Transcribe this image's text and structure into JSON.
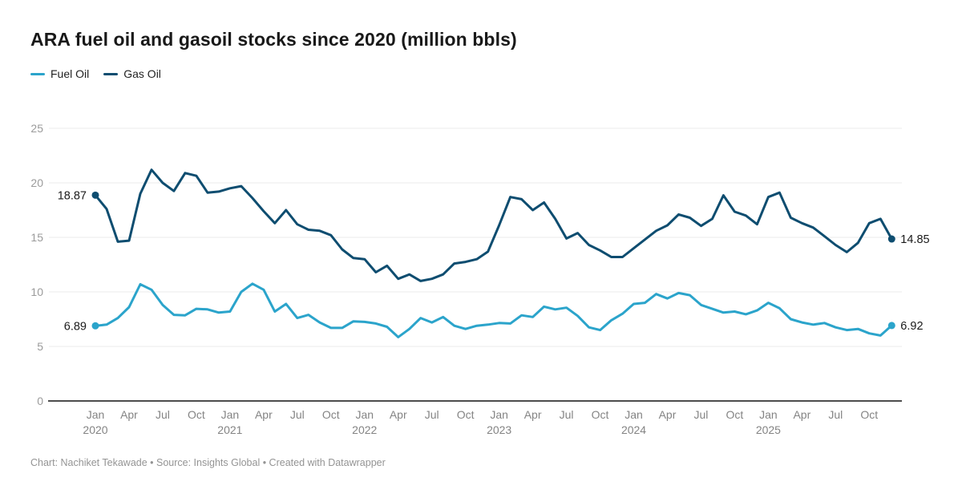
{
  "header": {
    "title": "ARA fuel oil and gasoil stocks since 2020 (million bbls)"
  },
  "legend": [
    {
      "label": "Fuel Oil",
      "color": "#2BA4CB"
    },
    {
      "label": "Gas Oil",
      "color": "#0E4D70"
    }
  ],
  "footer": {
    "text": "Chart: Nachiket Tekawade • Source: Insights Global • Created with Datawrapper"
  },
  "chart_data": {
    "type": "line",
    "title": "ARA fuel oil and gasoil stocks since 2020 (million bbls)",
    "frequency": "monthly",
    "x_start": "Jan 2020",
    "x_end": "Dec 2025",
    "ylim": [
      0,
      25
    ],
    "yticks": [
      0,
      5,
      10,
      15,
      20,
      25
    ],
    "grid": true,
    "legend_position": "top-left",
    "categories": [
      "Jan 2020",
      "Feb 2020",
      "Mar 2020",
      "Apr 2020",
      "May 2020",
      "Jun 2020",
      "Jul 2020",
      "Aug 2020",
      "Sep 2020",
      "Oct 2020",
      "Nov 2020",
      "Dec 2020",
      "Jan 2021",
      "Feb 2021",
      "Mar 2021",
      "Apr 2021",
      "May 2021",
      "Jun 2021",
      "Jul 2021",
      "Aug 2021",
      "Sep 2021",
      "Oct 2021",
      "Nov 2021",
      "Dec 2021",
      "Jan 2022",
      "Feb 2022",
      "Mar 2022",
      "Apr 2022",
      "May 2022",
      "Jun 2022",
      "Jul 2022",
      "Aug 2022",
      "Sep 2022",
      "Oct 2022",
      "Nov 2022",
      "Dec 2022",
      "Jan 2023",
      "Feb 2023",
      "Mar 2023",
      "Apr 2023",
      "May 2023",
      "Jun 2023",
      "Jul 2023",
      "Aug 2023",
      "Sep 2023",
      "Oct 2023",
      "Nov 2023",
      "Dec 2023",
      "Jan 2024",
      "Feb 2024",
      "Mar 2024",
      "Apr 2024",
      "May 2024",
      "Jun 2024",
      "Jul 2024",
      "Aug 2024",
      "Sep 2024",
      "Oct 2024",
      "Nov 2024",
      "Dec 2024",
      "Jan 2025",
      "Feb 2025",
      "Mar 2025",
      "Apr 2025",
      "May 2025",
      "Jun 2025",
      "Jul 2025",
      "Aug 2025",
      "Sep 2025",
      "Oct 2025",
      "Nov 2025",
      "Dec 2025"
    ],
    "xticks": [
      {
        "index": 0,
        "label": "Jan",
        "year": "2020"
      },
      {
        "index": 3,
        "label": "Apr"
      },
      {
        "index": 6,
        "label": "Jul"
      },
      {
        "index": 9,
        "label": "Oct"
      },
      {
        "index": 12,
        "label": "Jan",
        "year": "2021"
      },
      {
        "index": 15,
        "label": "Apr"
      },
      {
        "index": 18,
        "label": "Jul"
      },
      {
        "index": 21,
        "label": "Oct"
      },
      {
        "index": 24,
        "label": "Jan",
        "year": "2022"
      },
      {
        "index": 27,
        "label": "Apr"
      },
      {
        "index": 30,
        "label": "Jul"
      },
      {
        "index": 33,
        "label": "Oct"
      },
      {
        "index": 36,
        "label": "Jan",
        "year": "2023"
      },
      {
        "index": 39,
        "label": "Apr"
      },
      {
        "index": 42,
        "label": "Jul"
      },
      {
        "index": 45,
        "label": "Oct"
      },
      {
        "index": 48,
        "label": "Jan",
        "year": "2024"
      },
      {
        "index": 51,
        "label": "Apr"
      },
      {
        "index": 54,
        "label": "Jul"
      },
      {
        "index": 57,
        "label": "Oct"
      },
      {
        "index": 60,
        "label": "Jan",
        "year": "2025"
      },
      {
        "index": 63,
        "label": "Apr"
      },
      {
        "index": 66,
        "label": "Jul"
      },
      {
        "index": 69,
        "label": "Oct"
      }
    ],
    "series": [
      {
        "name": "Fuel Oil",
        "color": "#2BA4CB",
        "start_label": "6.89",
        "end_label": "6.92",
        "values": [
          6.89,
          7.0,
          7.6,
          8.6,
          10.7,
          10.2,
          8.8,
          7.9,
          7.85,
          8.45,
          8.4,
          8.1,
          8.2,
          10.0,
          10.75,
          10.2,
          8.2,
          8.9,
          7.6,
          7.9,
          7.2,
          6.7,
          6.7,
          7.3,
          7.25,
          7.1,
          6.8,
          5.85,
          6.6,
          7.6,
          7.2,
          7.7,
          6.9,
          6.6,
          6.9,
          7.0,
          7.15,
          7.1,
          7.85,
          7.7,
          8.65,
          8.4,
          8.55,
          7.8,
          6.75,
          6.5,
          7.4,
          8.0,
          8.9,
          9.0,
          9.8,
          9.4,
          9.9,
          9.7,
          8.8,
          8.45,
          8.1,
          8.2,
          7.95,
          8.3,
          9.0,
          8.5,
          7.5,
          7.2,
          7.0,
          7.15,
          6.75,
          6.5,
          6.6,
          6.2,
          6.0,
          6.92
        ]
      },
      {
        "name": "Gas Oil",
        "color": "#0E4D70",
        "start_label": "18.87",
        "end_label": "14.85",
        "values": [
          18.87,
          17.6,
          14.6,
          14.7,
          19.0,
          21.2,
          20.0,
          19.25,
          20.9,
          20.65,
          19.1,
          19.2,
          19.5,
          19.7,
          18.6,
          17.4,
          16.3,
          17.5,
          16.2,
          15.7,
          15.6,
          15.2,
          13.9,
          13.1,
          13.0,
          11.8,
          12.4,
          11.2,
          11.6,
          11.0,
          11.2,
          11.6,
          12.6,
          12.75,
          13.0,
          13.7,
          16.1,
          18.7,
          18.5,
          17.5,
          18.2,
          16.7,
          14.9,
          15.4,
          14.3,
          13.8,
          13.2,
          13.2,
          14.0,
          14.8,
          15.6,
          16.1,
          17.1,
          16.8,
          16.05,
          16.7,
          18.85,
          17.35,
          17.0,
          16.2,
          18.7,
          19.1,
          16.8,
          16.3,
          15.9,
          15.1,
          14.3,
          13.65,
          14.5,
          16.3,
          16.7,
          14.85
        ]
      }
    ]
  }
}
